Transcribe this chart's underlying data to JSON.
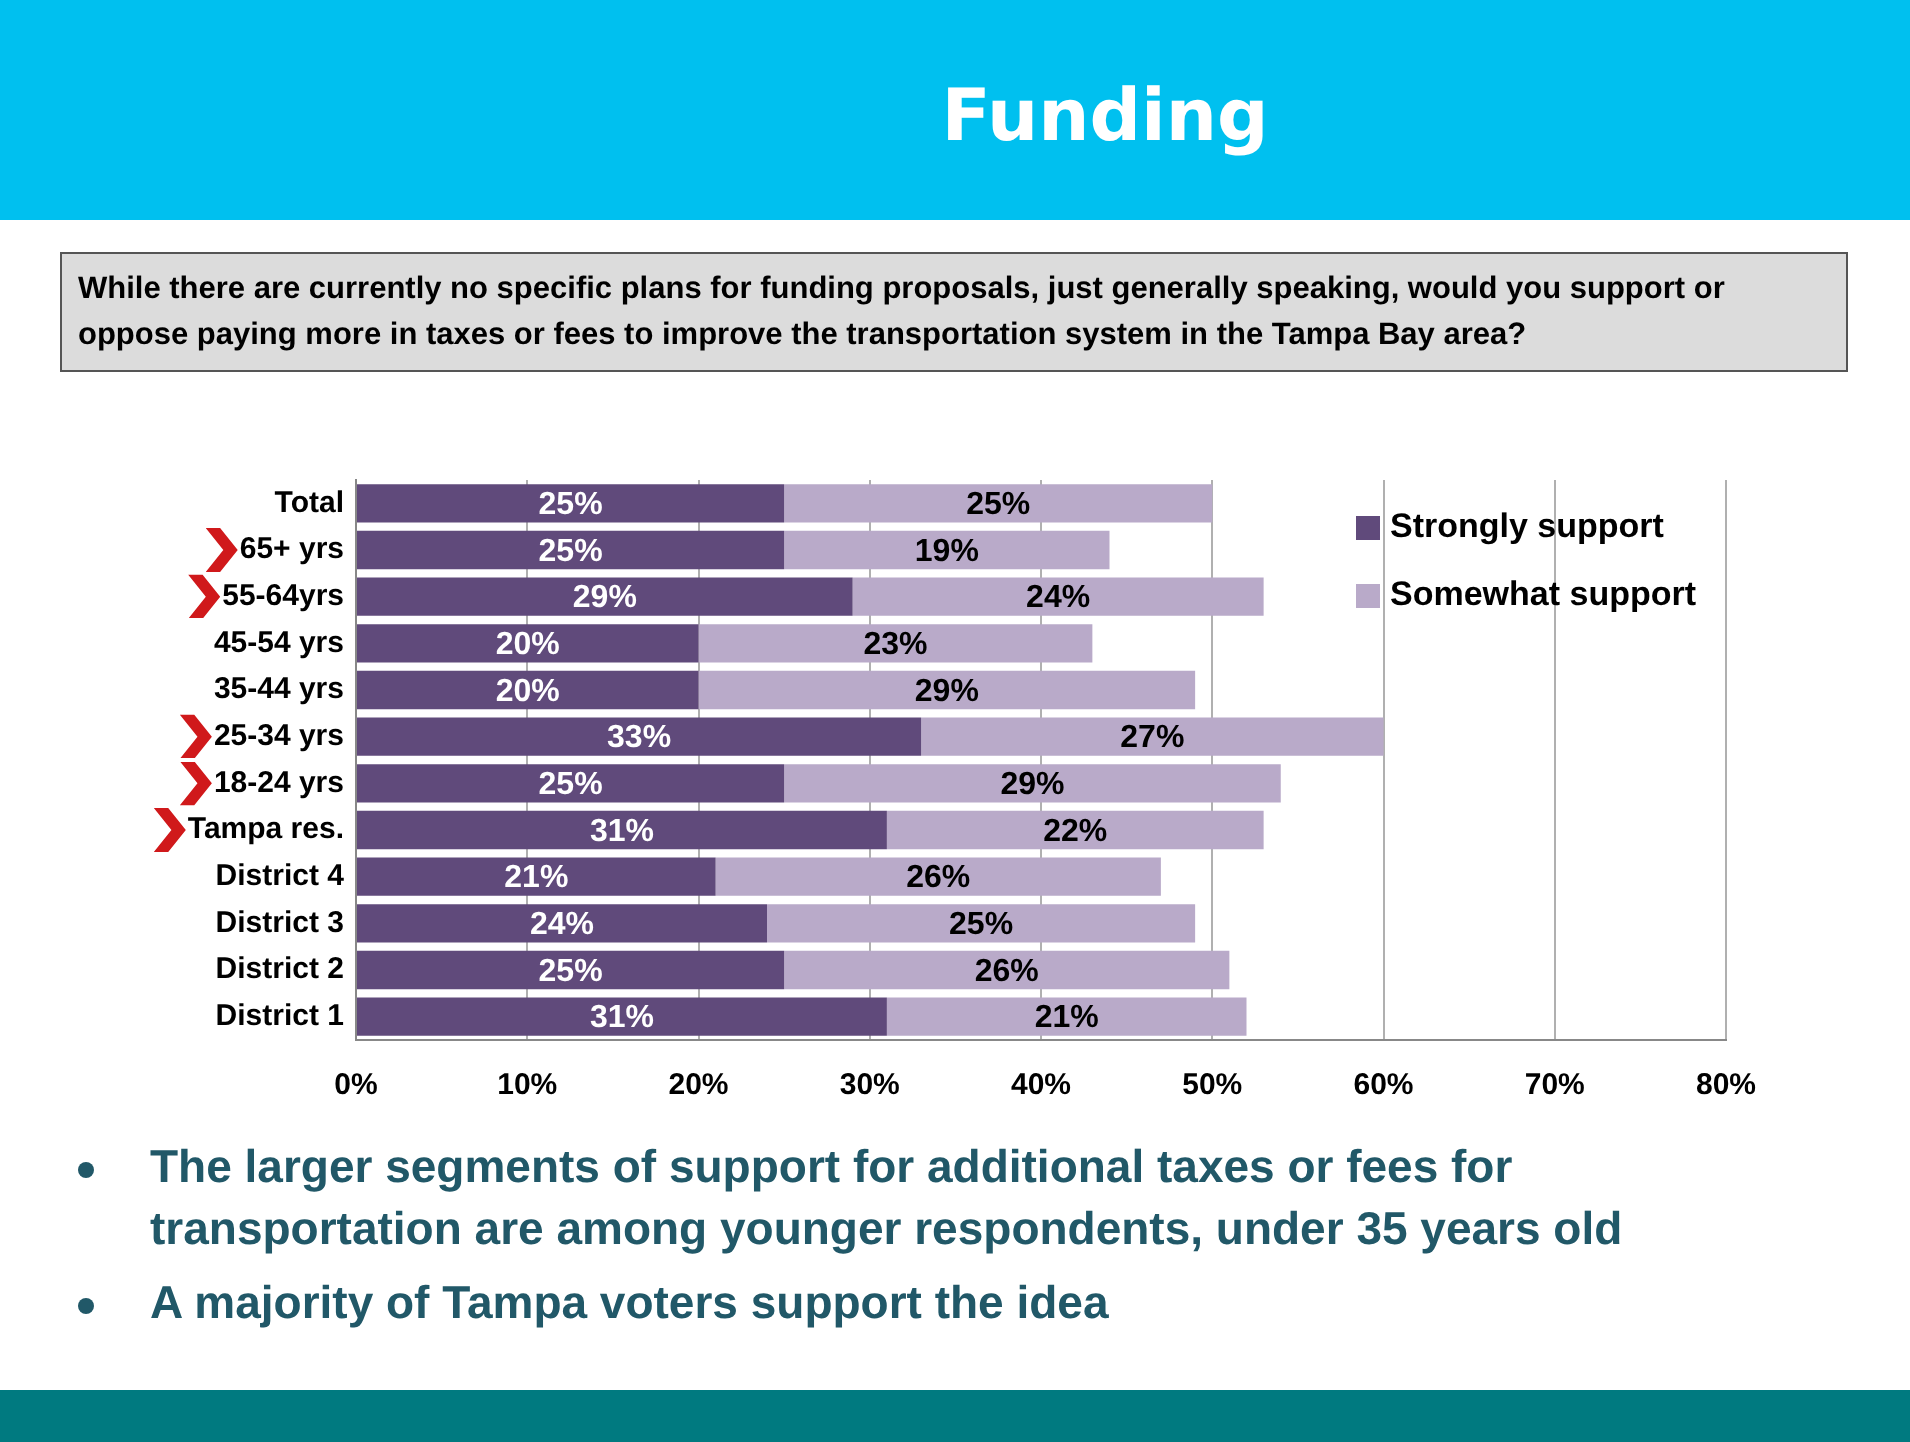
{
  "chart_data": {
    "type": "bar",
    "orientation": "horizontal",
    "stacked": true,
    "title": "Funding",
    "subtitle": "While there are currently no specific plans for funding proposals, just generally speaking, would you support or oppose paying more in taxes or fees to improve the transportation system in the Tampa Bay area?",
    "categories": [
      "Total",
      "65+ yrs",
      "55-64yrs",
      "45-54 yrs",
      "35-44 yrs",
      "25-34 yrs",
      "18-24 yrs",
      "Tampa res.",
      "District 4",
      "District 3",
      "District 2",
      "District 1"
    ],
    "series": [
      {
        "name": "Strongly support",
        "color": "#604a7b",
        "values": [
          25,
          25,
          29,
          20,
          20,
          33,
          25,
          31,
          21,
          24,
          25,
          31
        ],
        "value_labels": [
          "25%",
          "25%",
          "29%",
          "20%",
          "20%",
          "33%",
          "25%",
          "31%",
          "21%",
          "24%",
          "25%",
          "31%"
        ]
      },
      {
        "name": "Somewhat support",
        "color": "#b9aac9",
        "values": [
          25,
          19,
          24,
          23,
          29,
          27,
          29,
          22,
          26,
          25,
          26,
          21
        ],
        "value_labels": [
          "25%",
          "19%",
          "24%",
          "23%",
          "29%",
          "27%",
          "29%",
          "22%",
          "26%",
          "25%",
          "26%",
          "21%"
        ]
      }
    ],
    "xlim": [
      0,
      80
    ],
    "xticks": [
      {
        "value": 0,
        "label": "0%"
      },
      {
        "value": 10,
        "label": "10%"
      },
      {
        "value": 20,
        "label": "20%"
      },
      {
        "value": 30,
        "label": "30%"
      },
      {
        "value": 40,
        "label": "40%"
      },
      {
        "value": 50,
        "label": "50%"
      },
      {
        "value": 60,
        "label": "60%"
      },
      {
        "value": 70,
        "label": "70%"
      },
      {
        "value": 80,
        "label": "80%"
      }
    ],
    "grid": "x",
    "legend": "top right",
    "annotations": [
      "The larger segments of support for additional taxes or fees for transportation  are among younger respondents, under 35 years old",
      "A majority of Tampa voters support the idea"
    ]
  }
}
